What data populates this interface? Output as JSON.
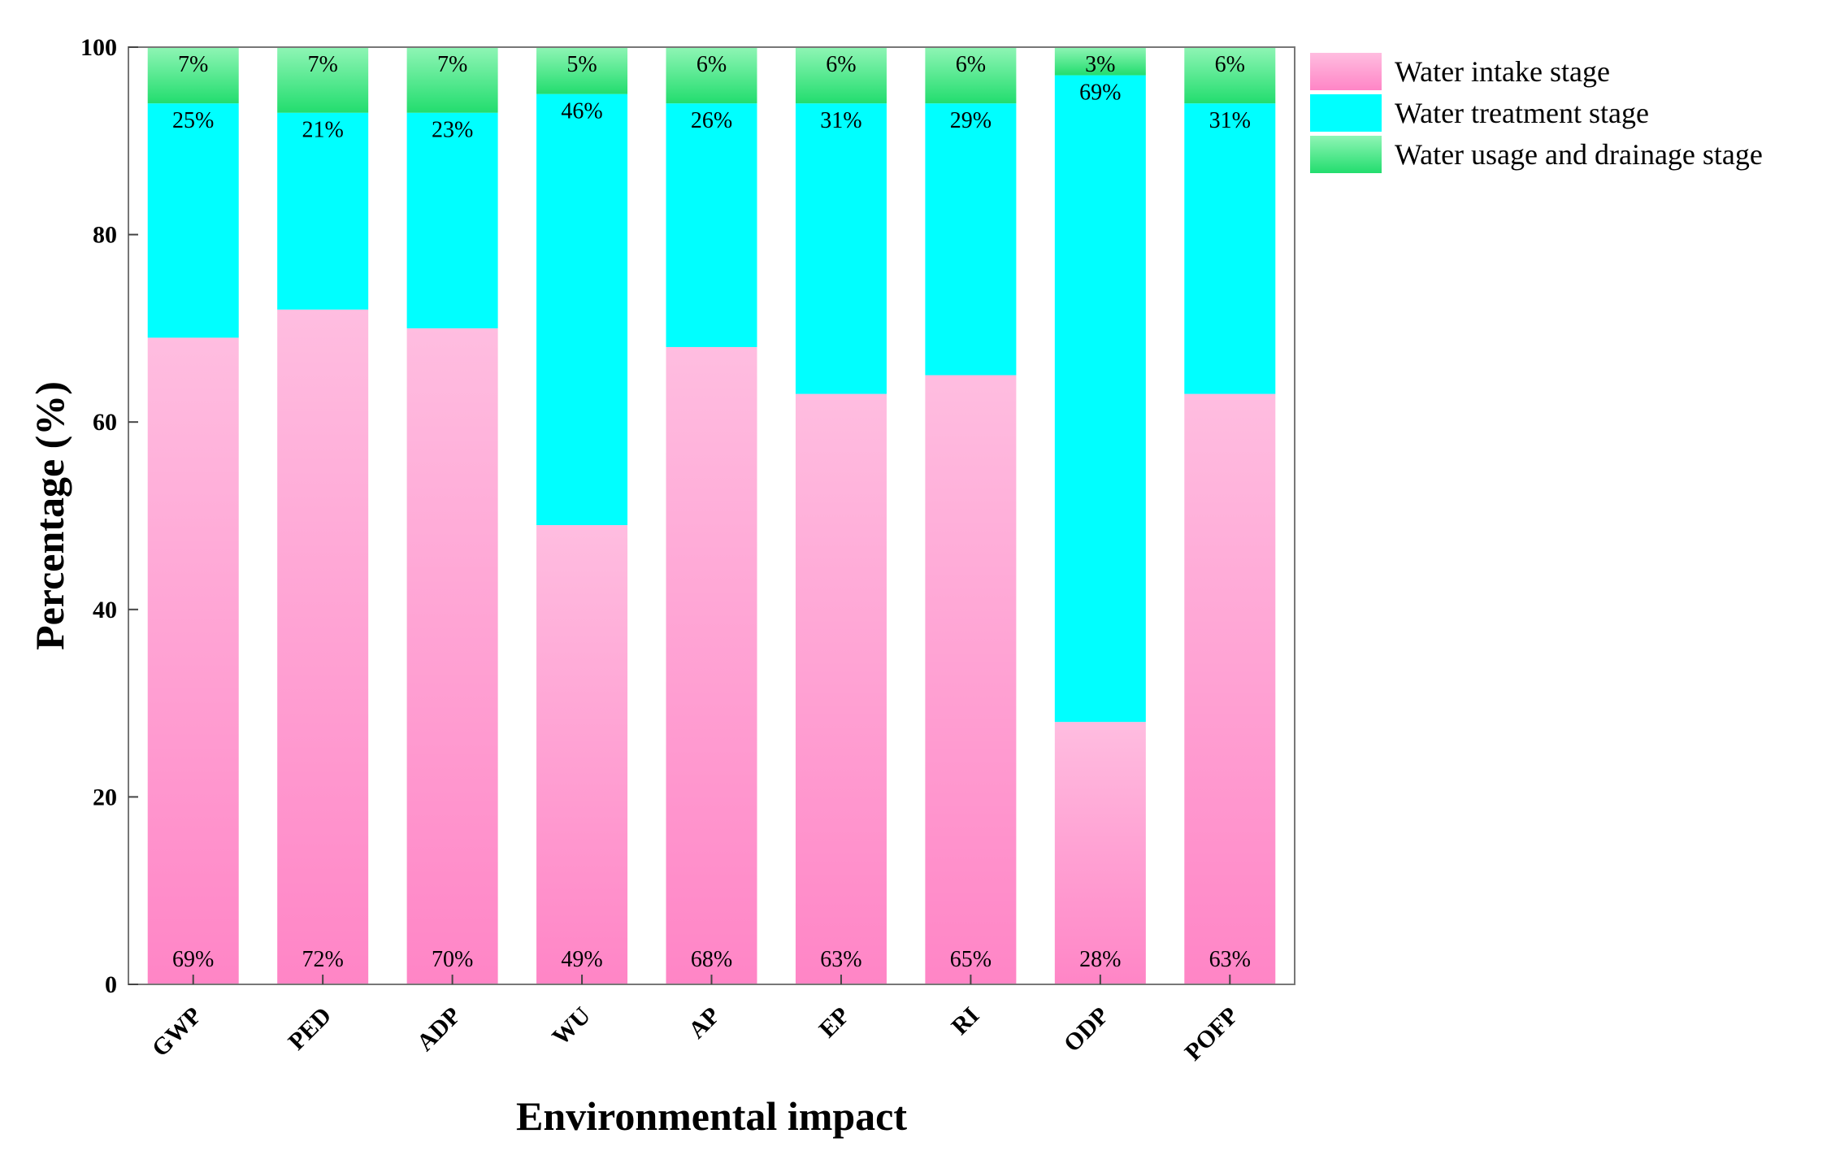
{
  "chart_data": {
    "type": "bar",
    "stacked": true,
    "title": "",
    "xlabel": "Environmental impact",
    "ylabel": "Percentage (%)",
    "ylim": [
      0,
      100
    ],
    "yticks": [
      "0",
      "20",
      "40",
      "60",
      "80",
      "100"
    ],
    "categories": [
      "GWP",
      "PED",
      "ADP",
      "WU",
      "AP",
      "EP",
      "RI",
      "ODP",
      "POFP"
    ],
    "series": [
      {
        "name": "Water intake stage",
        "color": "#ff85c6",
        "values": [
          69,
          72,
          70,
          49,
          68,
          63,
          65,
          28,
          63
        ],
        "labels": [
          "69%",
          "72%",
          "70%",
          "49%",
          "68%",
          "63%",
          "65%",
          "28%",
          "63%"
        ]
      },
      {
        "name": "Water treatment stage",
        "color": "#00ffff",
        "values": [
          25,
          21,
          23,
          46,
          26,
          31,
          29,
          69,
          31
        ],
        "labels": [
          "25%",
          "21%",
          "23%",
          "46%",
          "26%",
          "31%",
          "29%",
          "69%",
          "31%"
        ]
      },
      {
        "name": "Water usage and drainage stage",
        "color": "#33e07a",
        "values": [
          7,
          7,
          7,
          5,
          6,
          6,
          6,
          3,
          6
        ],
        "labels": [
          "7%",
          "7%",
          "7%",
          "5%",
          "6%",
          "6%",
          "6%",
          "3%",
          "6%"
        ]
      }
    ],
    "legend_position": "top-right (outside plot)",
    "grid": false
  }
}
